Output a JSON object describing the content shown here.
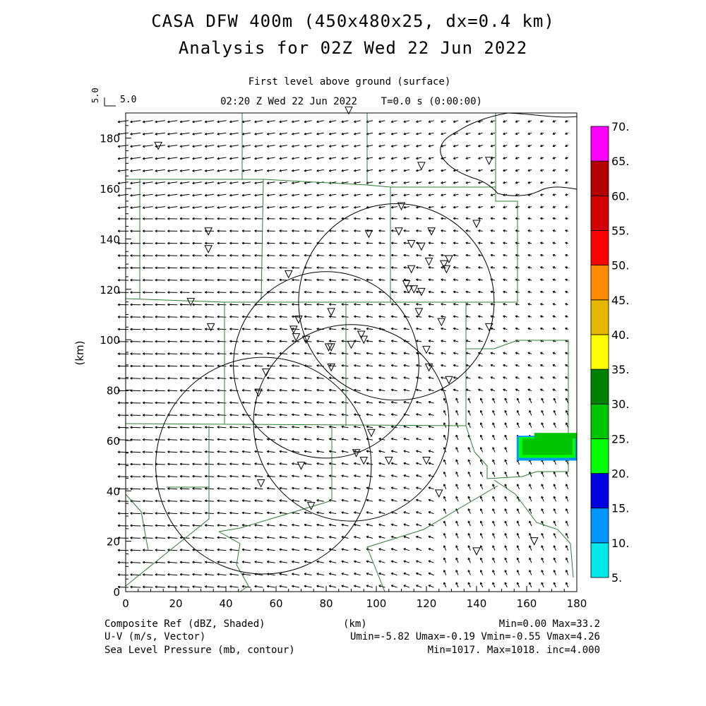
{
  "header": {
    "title_line1": "CASA DFW 400m (450x480x25, dx=0.4 km)",
    "title_line2": "Analysis for 02Z Wed 22 Jun 2022",
    "level": "First level above ground (surface)",
    "time": "02:20 Z Wed 22 Jun 2022    T=0.0 s (0:00:00)",
    "ref_vector_label": "5.0",
    "ref_vector_rot_label": "5.0"
  },
  "footer": {
    "left1": "Composite Ref (dBZ, Shaded)",
    "center1": "(km)",
    "right1": "Min=0.00 Max=33.2",
    "left2": "U-V (m/s, Vector)",
    "right2": "Umin=-5.82 Umax=-0.19 Vmin=-0.55 Vmax=4.26",
    "left3": "Sea Level Pressure (mb, contour)",
    "right3": "Min=1017. Max=1018. inc=4.000"
  },
  "colors": {
    "county_lines": "#2e7d32",
    "frame": "#000000",
    "colorbar": [
      "#00e8e8",
      "#0096ff",
      "#0000e0",
      "#00ff00",
      "#00c400",
      "#008000",
      "#ffff00",
      "#e6b800",
      "#ff8c00",
      "#ff0000",
      "#d20000",
      "#b40000",
      "#ff00ff"
    ]
  },
  "chart_data": {
    "type": "map",
    "xlabel": "(km)",
    "ylabel": "(km)",
    "xlim": [
      0,
      180
    ],
    "ylim": [
      0,
      190
    ],
    "x_ticks": [
      "0",
      "20",
      "40",
      "60",
      "80",
      "100",
      "120",
      "140",
      "160",
      "180"
    ],
    "y_ticks": [
      "0",
      "20",
      "40",
      "60",
      "80",
      "100",
      "120",
      "140",
      "160",
      "180"
    ],
    "colorbar_labels": [
      "5.",
      "10.",
      "15.",
      "20.",
      "25.",
      "30.",
      "35.",
      "40.",
      "45.",
      "50.",
      "55.",
      "60.",
      "65.",
      "70."
    ],
    "range_rings": [
      {
        "cx": 108,
        "cy": 115,
        "r": 39
      },
      {
        "cx": 80,
        "cy": 90,
        "r": 37
      },
      {
        "cx": 90,
        "cy": 67,
        "r": 39
      },
      {
        "cx": 55,
        "cy": 50,
        "r": 43
      }
    ],
    "radar_sites": [
      [
        13,
        177
      ],
      [
        89,
        191
      ],
      [
        118,
        169
      ],
      [
        145,
        171
      ],
      [
        110,
        153
      ],
      [
        140,
        146
      ],
      [
        33,
        143
      ],
      [
        97,
        142
      ],
      [
        109,
        143
      ],
      [
        122,
        143
      ],
      [
        33,
        136
      ],
      [
        114,
        138
      ],
      [
        118,
        137
      ],
      [
        65,
        126
      ],
      [
        121,
        131
      ],
      [
        127,
        130
      ],
      [
        129,
        132
      ],
      [
        114,
        128
      ],
      [
        128,
        128
      ],
      [
        112,
        122
      ],
      [
        113,
        120
      ],
      [
        115,
        120
      ],
      [
        118,
        119
      ],
      [
        26,
        115
      ],
      [
        117,
        111
      ],
      [
        82,
        111
      ],
      [
        69,
        108
      ],
      [
        34,
        105
      ],
      [
        67,
        104
      ],
      [
        126,
        107
      ],
      [
        145,
        105
      ],
      [
        68,
        101
      ],
      [
        94,
        102
      ],
      [
        72,
        100
      ],
      [
        95,
        100
      ],
      [
        90,
        98
      ],
      [
        81,
        97
      ],
      [
        82,
        97
      ],
      [
        120,
        96
      ],
      [
        56,
        87
      ],
      [
        82,
        89
      ],
      [
        121,
        89
      ],
      [
        129,
        84
      ],
      [
        53,
        79
      ],
      [
        98,
        63
      ],
      [
        92,
        55
      ],
      [
        95,
        52
      ],
      [
        70,
        50
      ],
      [
        105,
        52
      ],
      [
        120,
        52
      ],
      [
        54,
        43
      ],
      [
        125,
        39
      ],
      [
        74,
        34
      ],
      [
        140,
        16
      ],
      [
        163,
        20
      ]
    ],
    "reflectivity_area": {
      "x": [
        156,
        180
      ],
      "y": [
        52,
        63
      ],
      "max_dbz": 33.2
    },
    "pressure_contour": "1017-1018 mb coastline-like contour in upper right"
  }
}
